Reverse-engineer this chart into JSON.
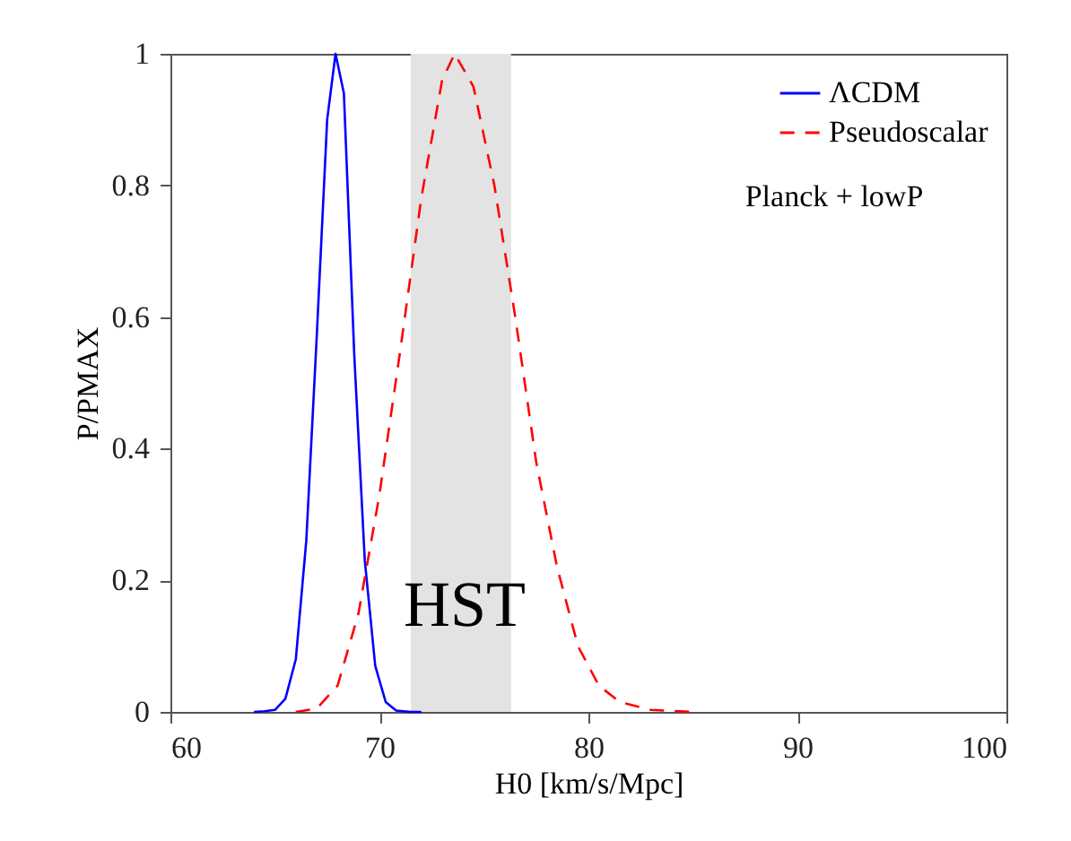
{
  "chart_data": {
    "type": "line",
    "xlabel": "H0 [km/s/Mpc]",
    "ylabel": "P/PMAX",
    "xlim": [
      60,
      100
    ],
    "xticks": [
      60,
      70,
      80,
      90,
      100
    ],
    "ylim": [
      0,
      1
    ],
    "yticks": [
      0,
      0.2,
      0.4,
      0.6,
      0.8,
      1
    ],
    "grid": false,
    "legend": "top right",
    "marker": "none",
    "series": [
      {
        "name": "ΛCDM",
        "color": "#0000ff",
        "line_style": "solid",
        "x": [
          64,
          64.5,
          65,
          65.5,
          66,
          66.5,
          67,
          67.5,
          67.9,
          68.3,
          68.8,
          69.3,
          69.8,
          70.3,
          70.8,
          71.5,
          72
        ],
        "values": [
          0,
          0.001,
          0.003,
          0.02,
          0.08,
          0.26,
          0.57,
          0.9,
          1,
          0.94,
          0.54,
          0.23,
          0.07,
          0.015,
          0.002,
          0,
          0
        ]
      },
      {
        "name": "Pseudoscalar",
        "color": "#ff0000",
        "line_style": "dashed",
        "x": [
          66,
          67,
          68,
          69,
          70,
          71,
          72,
          73,
          73.6,
          74.5,
          75.5,
          76.5,
          77.5,
          78.5,
          79.5,
          80.5,
          81.5,
          83,
          85
        ],
        "values": [
          0,
          0.005,
          0.04,
          0.15,
          0.33,
          0.55,
          0.78,
          0.96,
          1,
          0.95,
          0.8,
          0.6,
          0.38,
          0.22,
          0.1,
          0.04,
          0.015,
          0.003,
          0
        ]
      }
    ],
    "bands": [
      {
        "axis": "x",
        "from": 71.5,
        "to": 76.3,
        "label": "HST",
        "color": "#e3e3e3"
      }
    ],
    "annotations": [
      "Planck + lowP"
    ]
  }
}
